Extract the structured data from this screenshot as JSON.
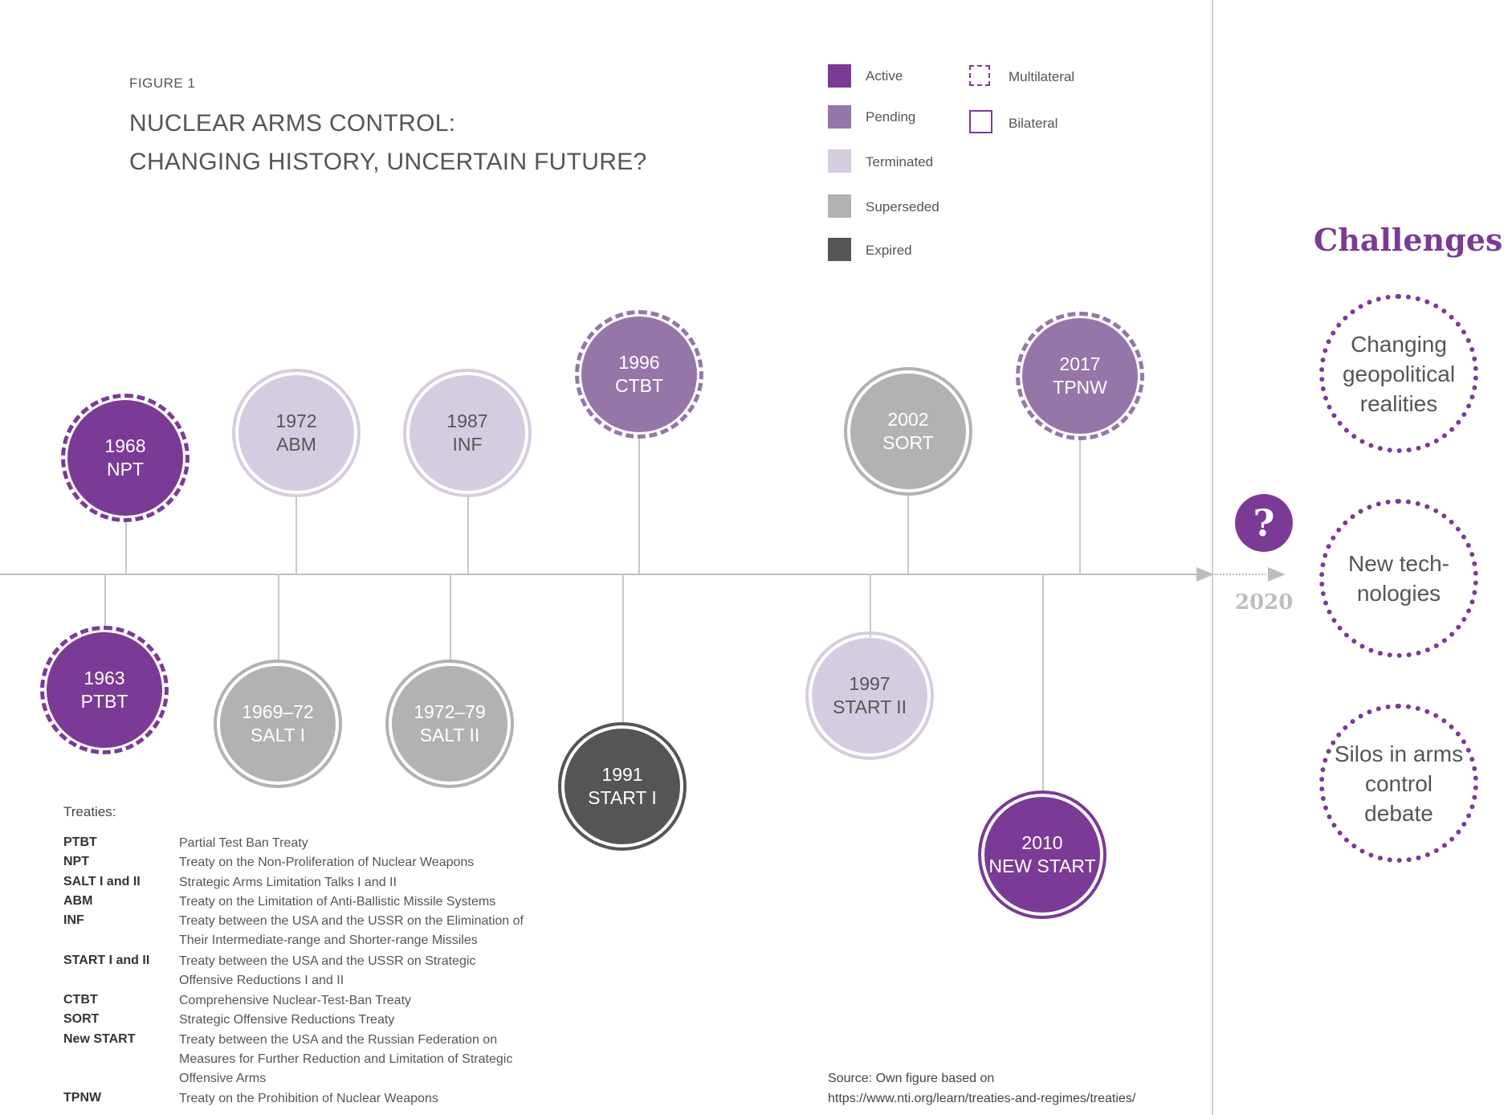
{
  "figure_label": "FIGURE 1",
  "title_line1": "NUCLEAR ARMS CONTROL:",
  "title_line2": "CHANGING HISTORY, UNCERTAIN FUTURE?",
  "legend": {
    "active": "Active",
    "pending": "Pending",
    "terminated": "Terminated",
    "superseded": "Superseded",
    "expired": "Expired",
    "multilateral": "Multilateral",
    "bilateral": "Bilateral"
  },
  "colors": {
    "active": "#7b3a96",
    "pending": "#9676a8",
    "terminated": "#d6ccdf",
    "superseded": "#b2b2b2",
    "expired": "#555555"
  },
  "treaties_above": [
    {
      "year": "1968",
      "name": "NPT",
      "status": "active",
      "type": "multilateral"
    },
    {
      "year": "1972",
      "name": "ABM",
      "status": "terminated",
      "type": "bilateral"
    },
    {
      "year": "1987",
      "name": "INF",
      "status": "terminated",
      "type": "bilateral"
    },
    {
      "year": "1996",
      "name": "CTBT",
      "status": "pending",
      "type": "multilateral"
    },
    {
      "year": "2002",
      "name": "SORT",
      "status": "superseded",
      "type": "bilateral"
    },
    {
      "year": "2017",
      "name": "TPNW",
      "status": "pending",
      "type": "multilateral"
    }
  ],
  "treaties_below": [
    {
      "year": "1963",
      "name": "PTBT",
      "status": "active",
      "type": "multilateral"
    },
    {
      "year": "1969–72",
      "name": "SALT I",
      "status": "superseded",
      "type": "bilateral"
    },
    {
      "year": "1972–79",
      "name": "SALT II",
      "status": "superseded",
      "type": "bilateral"
    },
    {
      "year": "1991",
      "name": "START I",
      "status": "expired",
      "type": "bilateral"
    },
    {
      "year": "1997",
      "name": "START II",
      "status": "terminated",
      "type": "bilateral"
    },
    {
      "year": "2010",
      "name": "NEW START",
      "status": "active",
      "type": "bilateral"
    }
  ],
  "question_mark": "?",
  "year_2020": "2020",
  "challenges": {
    "title": "Challenges",
    "items": [
      "Changing geopolitical realities",
      "New tech-nologies",
      "Silos in arms control debate"
    ]
  },
  "treaties_heading": "Treaties:",
  "glossary": [
    {
      "abbr": "PTBT",
      "full": "Partial Test Ban Treaty"
    },
    {
      "abbr": "NPT",
      "full": "Treaty on the Non-Proliferation of Nuclear Weapons"
    },
    {
      "abbr": "SALT I and II",
      "full": "Strategic Arms Limitation Talks I and II"
    },
    {
      "abbr": "ABM",
      "full": "Treaty on the Limitation of Anti-Ballistic Missile Systems"
    },
    {
      "abbr": "INF",
      "full": "Treaty between the USA and the USSR on the Elimination of Their Intermediate-range and Shorter-range Missiles"
    },
    {
      "abbr": "START I and II",
      "full": "Treaty between the USA and the USSR on Strategic Offensive Reductions I and II"
    },
    {
      "abbr": "CTBT",
      "full": "Comprehensive Nuclear-Test-Ban Treaty"
    },
    {
      "abbr": "SORT",
      "full": "Strategic Offensive Reductions Treaty"
    },
    {
      "abbr": "New START",
      "full": "Treaty between the USA and the Russian Federation on Measures for Further Reduction and Limitation of Strategic Offensive Arms"
    },
    {
      "abbr": "TPNW",
      "full": "Treaty on the Prohibition of Nuclear Weapons"
    }
  ],
  "source_line1": "Source: Own figure based on",
  "source_line2": "https://www.nti.org/learn/treaties-and-regimes/treaties/"
}
